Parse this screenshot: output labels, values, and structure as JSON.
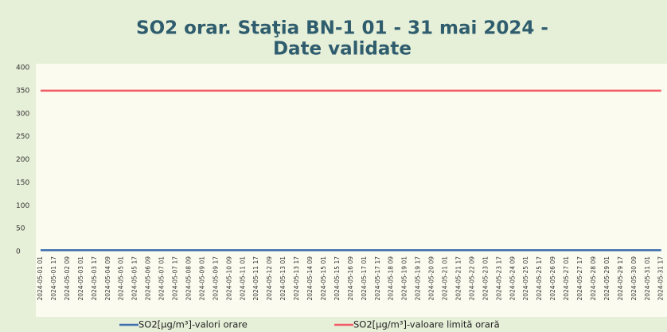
{
  "chart_data": {
    "type": "line",
    "title": [
      "SO2 orar. Staţia BN-1 01 - 31 mai 2024 -",
      "Date validate"
    ],
    "categories": [
      "2024-05-01 01",
      "2024-05-01 17",
      "2024-05-02 09",
      "2024-05-03 01",
      "2024-05-03 17",
      "2024-05-04 09",
      "2024-05-05 01",
      "2024-05-05 17",
      "2024-05-06 09",
      "2024-05-07 01",
      "2024-05-07 17",
      "2024-05-08 09",
      "2024-05-09 01",
      "2024-05-09 17",
      "2024-05-10 09",
      "2024-05-11 01",
      "2024-05-11 17",
      "2024-05-12 09",
      "2024-05-13 01",
      "2024-05-13 17",
      "2024-05-14 09",
      "2024-05-15 01",
      "2024-05-15 17",
      "2024-05-16 09",
      "2024-05-17 01",
      "2024-05-17 17",
      "2024-05-18 09",
      "2024-05-19 01",
      "2024-05-19 17",
      "2024-05-20 09",
      "2024-05-21 01",
      "2024-05-21 17",
      "2024-05-22 09",
      "2024-05-23 01",
      "2024-05-23 17",
      "2024-05-24 09",
      "2024-05-25 01",
      "2024-05-25 17",
      "2024-05-26 09",
      "2024-05-27 01",
      "2024-05-27 17",
      "2024-05-28 09",
      "2024-05-29 01",
      "2024-05-29 17",
      "2024-05-30 09",
      "2024-05-31 01",
      "2024-05-31 17"
    ],
    "series": [
      {
        "name": "SO2[µg/m³]-valori orare",
        "color": "#3f6fb0",
        "values": [
          3,
          3,
          3,
          3,
          3,
          3,
          3,
          3,
          3,
          3,
          3,
          3,
          3,
          3,
          3,
          3,
          3,
          3,
          3,
          3,
          3,
          3,
          3,
          3,
          3,
          3,
          3,
          3,
          3,
          3,
          3,
          3,
          3,
          3,
          3,
          3,
          3,
          3,
          3,
          3,
          3,
          3,
          3,
          3,
          3,
          3,
          3
        ]
      },
      {
        "name": "SO2[µg/m³]-valoare limită orară",
        "color": "#f25a66",
        "values": [
          350,
          350,
          350,
          350,
          350,
          350,
          350,
          350,
          350,
          350,
          350,
          350,
          350,
          350,
          350,
          350,
          350,
          350,
          350,
          350,
          350,
          350,
          350,
          350,
          350,
          350,
          350,
          350,
          350,
          350,
          350,
          350,
          350,
          350,
          350,
          350,
          350,
          350,
          350,
          350,
          350,
          350,
          350,
          350,
          350,
          350,
          350
        ]
      }
    ],
    "ylim": [
      0,
      400
    ],
    "yticks": [
      0,
      50,
      100,
      150,
      200,
      250,
      300,
      350,
      400
    ],
    "grid": false,
    "legend": "bottom"
  }
}
